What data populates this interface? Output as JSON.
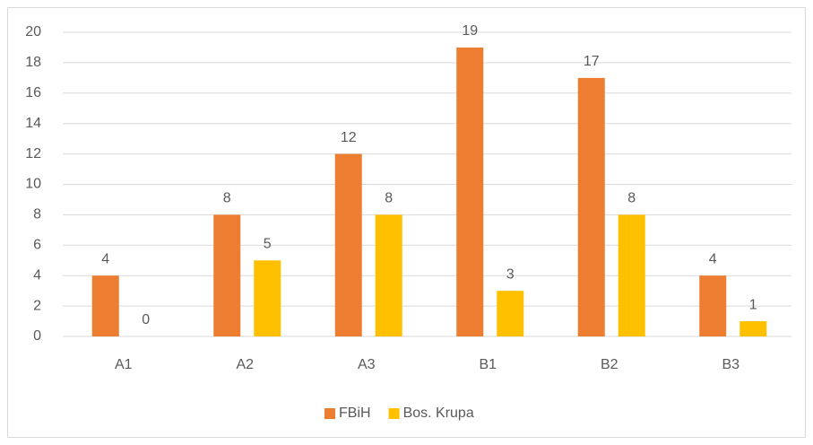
{
  "chart_data": {
    "type": "bar",
    "categories": [
      "A1",
      "A2",
      "A3",
      "B1",
      "B2",
      "B3"
    ],
    "series": [
      {
        "name": "FBiH",
        "color": "#ed7d31",
        "values": [
          4,
          8,
          12,
          19,
          17,
          4
        ]
      },
      {
        "name": "Bos. Krupa",
        "color": "#ffc000",
        "values": [
          0,
          5,
          8,
          3,
          8,
          1
        ]
      }
    ],
    "ylim": [
      0,
      20
    ],
    "yticks": [
      0,
      2,
      4,
      6,
      8,
      10,
      12,
      14,
      16,
      18,
      20
    ],
    "grid": true,
    "legend": "bottom"
  }
}
